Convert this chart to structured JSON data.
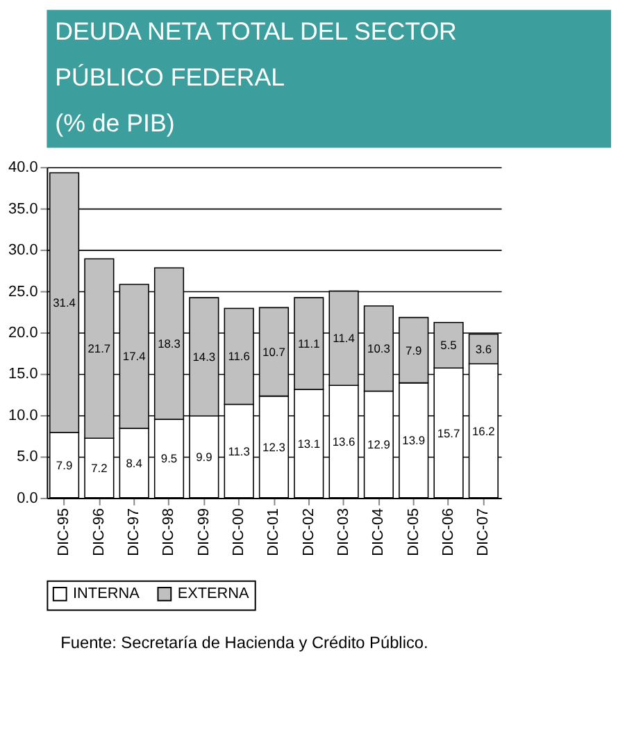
{
  "chart_data": {
    "type": "bar",
    "title": "DEUDA NETA TOTAL DEL SECTOR PÚBLICO FEDERAL",
    "subtitle": "(% de PIB)",
    "categories": [
      "DIC-95",
      "DIC-96",
      "DIC-97",
      "DIC-98",
      "DIC-99",
      "DIC-00",
      "DIC-01",
      "DIC-02",
      "DIC-03",
      "DIC-04",
      "DIC-05",
      "DIC-06",
      "DIC-07"
    ],
    "stacked": true,
    "series": [
      {
        "name": "INTERNA",
        "color": "#ffffff",
        "values": [
          7.9,
          7.2,
          8.4,
          9.5,
          9.9,
          11.3,
          12.3,
          13.1,
          13.6,
          12.9,
          13.9,
          15.7,
          16.2
        ]
      },
      {
        "name": "EXTERNA",
        "color": "#c0c0c0",
        "values": [
          31.4,
          21.7,
          17.4,
          18.3,
          14.3,
          11.6,
          10.7,
          11.1,
          11.4,
          10.3,
          7.9,
          5.5,
          3.6
        ]
      }
    ],
    "ylim": [
      0,
      40
    ],
    "yticks": [
      {
        "value": 0,
        "label": "0.0"
      },
      {
        "value": 5,
        "label": "5.0"
      },
      {
        "value": 10,
        "label": "10.0"
      },
      {
        "value": 15,
        "label": "15.0"
      },
      {
        "value": 20,
        "label": "20.0"
      },
      {
        "value": 25,
        "label": "25.0"
      },
      {
        "value": 30,
        "label": "30.0"
      },
      {
        "value": 35,
        "label": "35.0"
      },
      {
        "value": 40,
        "label": "40.0"
      }
    ],
    "grid": "y",
    "legend": "bottom",
    "data_labels": true,
    "annotations": [
      "Fuente: Secretaría de Hacienda y Crédito Público."
    ]
  }
}
